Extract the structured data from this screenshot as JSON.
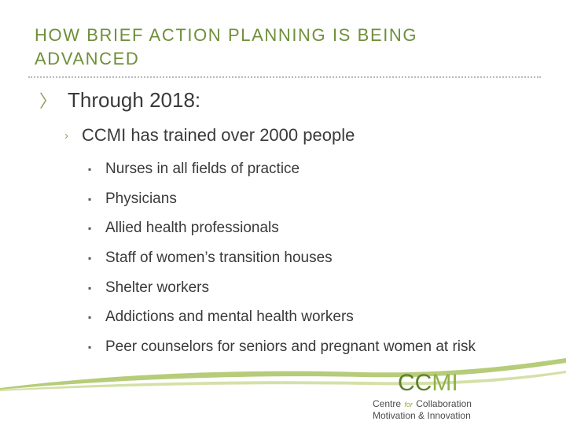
{
  "slide": {
    "title_line1": "HOW BRIEF ACTION PLANNING IS BEING",
    "title_line2": "ADVANCED",
    "level1": "Through 2018:",
    "level2": "CCMI has trained over 2000 people",
    "items": [
      "Nurses in all fields of practice",
      "Physicians",
      "Allied health professionals",
      "Staff of women’s transition houses",
      "Shelter workers",
      "Addictions and mental health workers",
      "Peer counselors for seniors and pregnant women at risk"
    ]
  },
  "logo": {
    "mark_part1": "CC",
    "mark_part2": "MI",
    "line1_a": "Centre",
    "line1_for": "for",
    "line1_b": "Collaboration",
    "line2": "Motivation & Innovation"
  },
  "colors": {
    "title": "#6f8f3a",
    "accent": "#8aa05a",
    "swoosh": "#b6cc7a"
  }
}
